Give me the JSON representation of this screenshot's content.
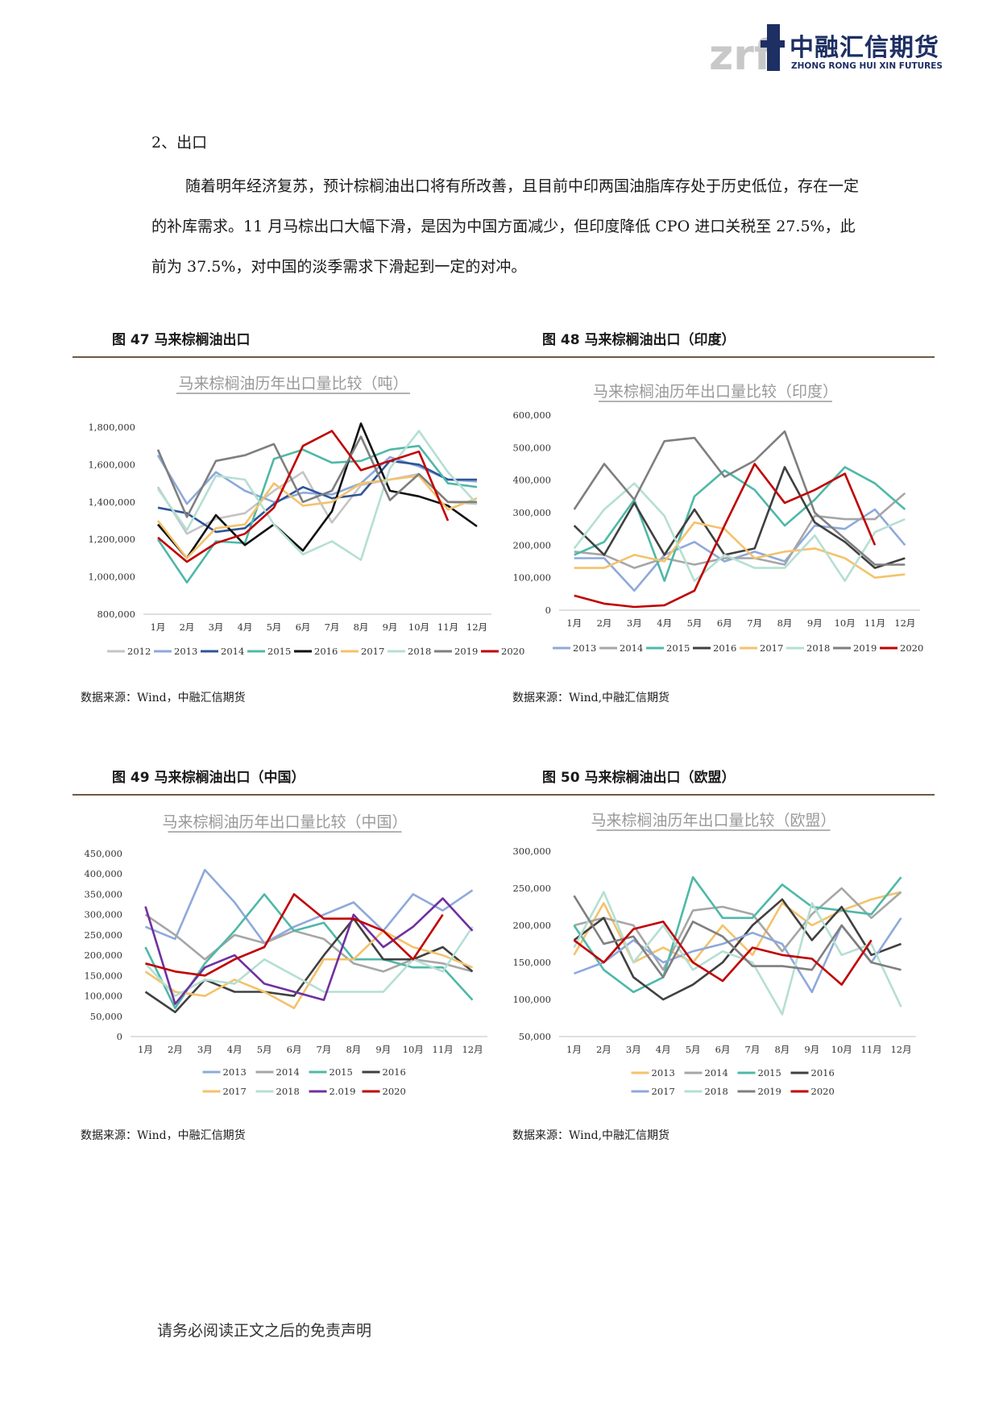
{
  "header": {
    "logo_mark": "zrf",
    "logo_cn": "中融汇信期货",
    "logo_en": "ZHONG RONG HUI XIN FUTURES"
  },
  "section": {
    "heading": "2、出口"
  },
  "paragraph": "随着明年经济复苏，预计棕榈油出口将有所改善，且目前中印两国油脂库存处于历史低位，存在一定的补库需求。11 月马棕出口大幅下滑，是因为中国方面减少，但印度降低 CPO 进口关税至 27.5%，此前为 37.5%，对中国的淡季需求下滑起到一定的对冲。",
  "figures": [
    {
      "title": "图 47 马来棕榈油出口",
      "source": "数据来源：Wind，中融汇信期货"
    },
    {
      "title": "图 48 马来棕榈油出口（印度）",
      "source": "数据来源：Wind,中融汇信期货"
    },
    {
      "title": "图 49 马来棕榈油出口（中国）",
      "source": "数据来源：Wind，中融汇信期货"
    },
    {
      "title": "图 50 马来棕榈油出口（欧盟）",
      "source": "数据来源：Wind,中融汇信期货"
    }
  ],
  "footer": "请务必阅读正文之后的免责声明",
  "chart_data": [
    {
      "type": "line",
      "title": "马来棕榈油历年出口量比较（吨）",
      "categories": [
        "1月",
        "2月",
        "3月",
        "4月",
        "5月",
        "6月",
        "7月",
        "8月",
        "9月",
        "10月",
        "11月",
        "12月"
      ],
      "ylim": [
        800000,
        1800000
      ],
      "yticks": [
        800000,
        1000000,
        1200000,
        1400000,
        1600000,
        1800000
      ],
      "ytick_labels": [
        "800,000",
        "1,000,000",
        "1,200,000",
        "1,400,000",
        "1,600,000",
        "1,800,000"
      ],
      "legend_position": "bottom",
      "legend_rows": [
        [
          "2012",
          "2013",
          "2014",
          "2015",
          "2016",
          "2017",
          "2018",
          "2019",
          "2020"
        ]
      ],
      "series": [
        {
          "name": "2012",
          "color": "#c4c4c4",
          "values": [
            1480000,
            1230000,
            1310000,
            1340000,
            1460000,
            1560000,
            1290000,
            1490000,
            1520000,
            1550000,
            1400000,
            1390000
          ]
        },
        {
          "name": "2013",
          "color": "#8ea9db",
          "values": [
            1650000,
            1390000,
            1560000,
            1460000,
            1400000,
            1450000,
            1440000,
            1500000,
            1640000,
            1590000,
            1520000,
            1510000
          ]
        },
        {
          "name": "2014",
          "color": "#2f5597",
          "values": [
            1370000,
            1340000,
            1240000,
            1260000,
            1390000,
            1480000,
            1420000,
            1440000,
            1620000,
            1600000,
            1520000,
            1520000
          ]
        },
        {
          "name": "2015",
          "color": "#4fb8a8",
          "values": [
            1200000,
            970000,
            1190000,
            1180000,
            1630000,
            1680000,
            1610000,
            1620000,
            1680000,
            1700000,
            1500000,
            1480000
          ]
        },
        {
          "name": "2016",
          "color": "#111111",
          "values": [
            1280000,
            1100000,
            1330000,
            1170000,
            1280000,
            1140000,
            1350000,
            1820000,
            1460000,
            1430000,
            1380000,
            1270000
          ]
        },
        {
          "name": "2017",
          "color": "#f4c26b",
          "values": [
            1300000,
            1100000,
            1260000,
            1280000,
            1500000,
            1380000,
            1400000,
            1500000,
            1520000,
            1540000,
            1360000,
            1420000
          ]
        },
        {
          "name": "2018",
          "color": "#b5dfd3",
          "values": [
            1470000,
            1250000,
            1540000,
            1520000,
            1280000,
            1120000,
            1190000,
            1090000,
            1580000,
            1780000,
            1560000,
            1390000
          ]
        },
        {
          "name": "2019",
          "color": "#7f7f7f",
          "values": [
            1680000,
            1320000,
            1620000,
            1650000,
            1710000,
            1400000,
            1460000,
            1750000,
            1410000,
            1550000,
            1400000,
            1400000
          ]
        },
        {
          "name": "2020",
          "color": "#c00000",
          "values": [
            1210000,
            1080000,
            1180000,
            1230000,
            1370000,
            1700000,
            1780000,
            1570000,
            1620000,
            1670000,
            1300000,
            null
          ]
        }
      ]
    },
    {
      "type": "line",
      "title": "马来棕榈油历年出口量比较（印度）",
      "categories": [
        "1月",
        "2月",
        "3月",
        "4月",
        "5月",
        "6月",
        "7月",
        "8月",
        "9月",
        "10月",
        "11月",
        "12月"
      ],
      "ylim": [
        0,
        600000
      ],
      "yticks": [
        0,
        100000,
        200000,
        300000,
        400000,
        500000,
        600000
      ],
      "ytick_labels": [
        "0",
        "100,000",
        "200,000",
        "300,000",
        "400,000",
        "500,000",
        "600,000"
      ],
      "legend_position": "bottom",
      "legend_rows": [
        [
          "2013",
          "2014",
          "2015",
          "2016",
          "2017",
          "2018",
          "2019",
          "2020"
        ]
      ],
      "series": [
        {
          "name": "2013",
          "color": "#8ea9db",
          "values": [
            160000,
            160000,
            60000,
            170000,
            210000,
            150000,
            180000,
            150000,
            260000,
            250000,
            310000,
            200000
          ]
        },
        {
          "name": "2014",
          "color": "#a6a6a6",
          "values": [
            180000,
            170000,
            130000,
            160000,
            140000,
            160000,
            160000,
            140000,
            290000,
            280000,
            280000,
            360000
          ]
        },
        {
          "name": "2015",
          "color": "#4fb8a8",
          "values": [
            170000,
            210000,
            340000,
            90000,
            350000,
            430000,
            370000,
            260000,
            340000,
            440000,
            390000,
            310000
          ]
        },
        {
          "name": "2016",
          "color": "#404040",
          "values": [
            260000,
            170000,
            330000,
            170000,
            310000,
            170000,
            190000,
            440000,
            270000,
            210000,
            130000,
            160000
          ]
        },
        {
          "name": "2017",
          "color": "#f4c26b",
          "values": [
            130000,
            130000,
            170000,
            150000,
            270000,
            250000,
            160000,
            180000,
            190000,
            160000,
            100000,
            110000
          ]
        },
        {
          "name": "2018",
          "color": "#b5dfd3",
          "values": [
            190000,
            310000,
            390000,
            290000,
            90000,
            170000,
            130000,
            130000,
            230000,
            90000,
            240000,
            280000
          ]
        },
        {
          "name": "2019",
          "color": "#7f7f7f",
          "values": [
            310000,
            450000,
            340000,
            520000,
            530000,
            410000,
            460000,
            550000,
            300000,
            220000,
            140000,
            140000
          ]
        },
        {
          "name": "2020",
          "color": "#c00000",
          "values": [
            45000,
            20000,
            10000,
            15000,
            60000,
            260000,
            450000,
            330000,
            370000,
            420000,
            200000,
            null
          ]
        }
      ]
    },
    {
      "type": "line",
      "title": "马来棕榈油历年出口量比较（中国）",
      "categories": [
        "1月",
        "2月",
        "3月",
        "4月",
        "5月",
        "6月",
        "7月",
        "8月",
        "9月",
        "10月",
        "11月",
        "12月"
      ],
      "ylim": [
        0,
        450000
      ],
      "yticks": [
        0,
        50000,
        100000,
        150000,
        200000,
        250000,
        300000,
        350000,
        400000,
        450000
      ],
      "ytick_labels": [
        "0",
        "50,000",
        "100,000",
        "150,000",
        "200,000",
        "250,000",
        "300,000",
        "350,000",
        "400,000",
        "450,000"
      ],
      "legend_position": "bottom",
      "legend_rows": [
        [
          "2013",
          "2014",
          "2015",
          "2016"
        ],
        [
          "2017",
          "2018",
          "2.019",
          "2020"
        ]
      ],
      "series": [
        {
          "name": "2013",
          "color": "#8ea9db",
          "values": [
            270000,
            240000,
            410000,
            330000,
            230000,
            270000,
            300000,
            330000,
            260000,
            350000,
            310000,
            360000
          ]
        },
        {
          "name": "2014",
          "color": "#a6a6a6",
          "values": [
            300000,
            250000,
            190000,
            250000,
            230000,
            260000,
            240000,
            180000,
            160000,
            190000,
            180000,
            160000
          ]
        },
        {
          "name": "2015",
          "color": "#4fb8a8",
          "values": [
            220000,
            70000,
            180000,
            260000,
            350000,
            260000,
            280000,
            190000,
            190000,
            170000,
            170000,
            90000
          ]
        },
        {
          "name": "2016",
          "color": "#404040",
          "values": [
            110000,
            60000,
            140000,
            110000,
            110000,
            100000,
            200000,
            290000,
            190000,
            190000,
            220000,
            160000
          ]
        },
        {
          "name": "2017",
          "color": "#f4c26b",
          "values": [
            160000,
            110000,
            100000,
            140000,
            110000,
            70000,
            190000,
            190000,
            260000,
            220000,
            200000,
            170000
          ]
        },
        {
          "name": "2018",
          "color": "#b5dfd3",
          "values": [
            180000,
            100000,
            140000,
            130000,
            190000,
            150000,
            110000,
            110000,
            110000,
            190000,
            160000,
            270000
          ]
        },
        {
          "name": "2.019",
          "color": "#7030a0",
          "values": [
            320000,
            80000,
            170000,
            200000,
            130000,
            110000,
            90000,
            300000,
            220000,
            270000,
            340000,
            260000
          ]
        },
        {
          "name": "2020",
          "color": "#c00000",
          "values": [
            180000,
            160000,
            150000,
            190000,
            220000,
            350000,
            290000,
            290000,
            260000,
            190000,
            300000,
            null
          ]
        }
      ]
    },
    {
      "type": "line",
      "title": "马来棕榈油历年出口量比较（欧盟）",
      "categories": [
        "1月",
        "2月",
        "3月",
        "4月",
        "5月",
        "6月",
        "7月",
        "8月",
        "9月",
        "10月",
        "11月",
        "12月"
      ],
      "ylim": [
        50000,
        300000
      ],
      "yticks": [
        50000,
        100000,
        150000,
        200000,
        250000,
        300000
      ],
      "ytick_labels": [
        "50,000",
        "100,000",
        "150,000",
        "200,000",
        "250,000",
        "300,000"
      ],
      "legend_position": "bottom",
      "legend_rows": [
        [
          "2013",
          "2014",
          "2015",
          "2016"
        ],
        [
          "2017",
          "2018",
          "2019",
          "2020"
        ]
      ],
      "series": [
        {
          "name": "2013",
          "color": "#f4c26b",
          "values": [
            160000,
            230000,
            150000,
            170000,
            150000,
            200000,
            160000,
            230000,
            200000,
            220000,
            235000,
            245000
          ]
        },
        {
          "name": "2014",
          "color": "#a6a6a6",
          "values": [
            200000,
            210000,
            200000,
            140000,
            220000,
            225000,
            215000,
            165000,
            215000,
            250000,
            210000,
            245000
          ]
        },
        {
          "name": "2015",
          "color": "#4fb8a8",
          "values": [
            200000,
            140000,
            110000,
            130000,
            265000,
            210000,
            210000,
            255000,
            225000,
            220000,
            215000,
            265000
          ]
        },
        {
          "name": "2016",
          "color": "#404040",
          "values": [
            180000,
            210000,
            130000,
            100000,
            120000,
            150000,
            200000,
            235000,
            180000,
            225000,
            160000,
            175000
          ]
        },
        {
          "name": "2017",
          "color": "#8ea9db",
          "values": [
            135000,
            150000,
            180000,
            150000,
            165000,
            175000,
            190000,
            175000,
            110000,
            200000,
            150000,
            210000
          ]
        },
        {
          "name": "2018",
          "color": "#b5dfd3",
          "values": [
            170000,
            245000,
            150000,
            200000,
            140000,
            165000,
            150000,
            80000,
            230000,
            160000,
            175000,
            90000
          ]
        },
        {
          "name": "2019",
          "color": "#7f7f7f",
          "values": [
            240000,
            175000,
            185000,
            130000,
            205000,
            185000,
            145000,
            145000,
            140000,
            200000,
            150000,
            140000
          ]
        },
        {
          "name": "2020",
          "color": "#c00000",
          "values": [
            180000,
            150000,
            195000,
            205000,
            150000,
            125000,
            170000,
            160000,
            155000,
            120000,
            180000,
            null
          ]
        }
      ]
    }
  ]
}
